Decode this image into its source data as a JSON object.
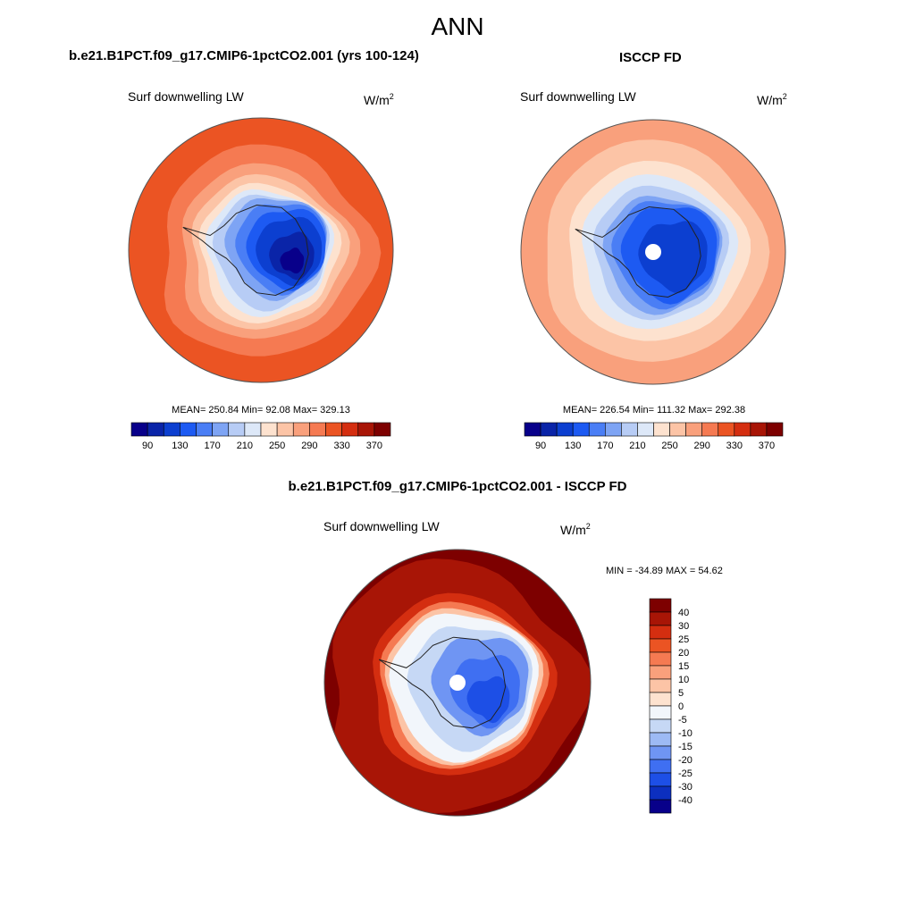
{
  "figure": {
    "title": "ANN",
    "panel_a": {
      "case": "b.e21.B1PCT.f09_g17.CMIP6-1pctCO2.001 (yrs 100-124)",
      "variable": "Surf downwelling LW",
      "units_base": "W/m",
      "units_exp": "2",
      "stats": "MEAN= 250.84  Min=  92.08  Max= 329.13"
    },
    "panel_b": {
      "case": "ISCCP FD",
      "variable": "Surf downwelling LW",
      "units_base": "W/m",
      "units_exp": "2",
      "stats": "MEAN= 226.54  Min= 111.32  Max= 292.38"
    },
    "panel_c": {
      "case": "b.e21.B1PCT.f09_g17.CMIP6-1pctCO2.001 - ISCCP FD",
      "variable": "Surf downwelling LW",
      "units_base": "W/m",
      "units_exp": "2",
      "stats": "MIN = -34.89 MAX =  54.62"
    }
  },
  "chart_data": [
    {
      "type": "heatmap",
      "projection": "south-polar-stereographic",
      "title": "b.e21.B1PCT.f09_g17.CMIP6-1pctCO2.001 (yrs 100-124)",
      "variable": "Surf downwelling LW",
      "units": "W/m2",
      "mean": 250.84,
      "min": 92.08,
      "max": 329.13,
      "colorbar_levels": [
        90,
        110,
        130,
        150,
        170,
        190,
        210,
        230,
        250,
        270,
        290,
        310,
        330,
        350,
        370
      ],
      "colorbar_ticks": [
        "90",
        "130",
        "170",
        "210",
        "250",
        "290",
        "330",
        "370"
      ],
      "colors": [
        "#08008a",
        "#0a24a8",
        "#0c3fd0",
        "#1d5af2",
        "#4a7ef5",
        "#7ea4f4",
        "#b7ccf5",
        "#dde8f8",
        "#fde2cf",
        "#fcc4a6",
        "#f9a07c",
        "#f57a52",
        "#eb5423",
        "#d42e10",
        "#a81506",
        "#7d0000"
      ]
    },
    {
      "type": "heatmap",
      "projection": "south-polar-stereographic",
      "title": "ISCCP FD",
      "variable": "Surf downwelling LW",
      "units": "W/m2",
      "mean": 226.54,
      "min": 111.32,
      "max": 292.38,
      "colorbar_levels": [
        90,
        110,
        130,
        150,
        170,
        190,
        210,
        230,
        250,
        270,
        290,
        310,
        330,
        350,
        370
      ],
      "colorbar_ticks": [
        "90",
        "130",
        "170",
        "210",
        "250",
        "290",
        "330",
        "370"
      ],
      "colors": [
        "#08008a",
        "#0a24a8",
        "#0c3fd0",
        "#1d5af2",
        "#4a7ef5",
        "#7ea4f4",
        "#b7ccf5",
        "#dde8f8",
        "#fde2cf",
        "#fcc4a6",
        "#f9a07c",
        "#f57a52",
        "#eb5423",
        "#d42e10",
        "#a81506",
        "#7d0000"
      ]
    },
    {
      "type": "heatmap",
      "projection": "south-polar-stereographic",
      "title": "b.e21.B1PCT.f09_g17.CMIP6-1pctCO2.001 - ISCCP FD",
      "variable": "Surf downwelling LW",
      "units": "W/m2",
      "min": -34.89,
      "max": 54.62,
      "colorbar_levels": [
        40,
        30,
        25,
        20,
        15,
        10,
        5,
        0,
        -5,
        -10,
        -15,
        -20,
        -25,
        -30,
        -40
      ],
      "colorbar_ticks": [
        "40",
        "30",
        "25",
        "20",
        "15",
        "10",
        "5",
        "0",
        "-5",
        "-10",
        "-15",
        "-20",
        "-25",
        "-30",
        "-40"
      ],
      "colors": [
        "#7d0000",
        "#a81506",
        "#d42e10",
        "#eb5423",
        "#f57a52",
        "#f9a07c",
        "#fcc4a6",
        "#fde2cf",
        "#f2f6fb",
        "#c6d8f5",
        "#9dbaf4",
        "#6f95f3",
        "#3f6ff2",
        "#1d4fe6",
        "#0c2fbf",
        "#08008a"
      ]
    }
  ]
}
